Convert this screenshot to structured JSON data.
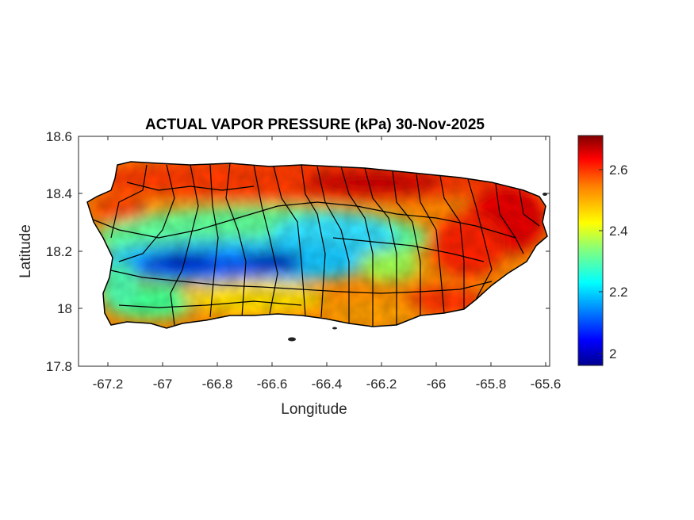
{
  "title": "ACTUAL VAPOR PRESSURE (kPa) 30-Nov-2025",
  "xlabel": "Longitude",
  "ylabel": "Latitude",
  "x_ticks": [
    "-67.2",
    "-67",
    "-66.8",
    "-66.6",
    "-66.4",
    "-66.2",
    "-66",
    "-65.8",
    "-65.6"
  ],
  "y_ticks": [
    "18.6",
    "18.4",
    "18.2",
    "18",
    "17.8"
  ],
  "colorbar": {
    "ticks": [
      "2.6",
      "2.4",
      "2.2",
      "2"
    ],
    "range": [
      1.96,
      2.71
    ],
    "colormap": "jet",
    "colors": [
      "#00008f",
      "#0000ff",
      "#00ffff",
      "#80ff80",
      "#ffff00",
      "#ff8000",
      "#ff0000",
      "#800000"
    ]
  },
  "map": {
    "region": "Puerto Rico",
    "lon_range": [
      -67.3,
      -65.58
    ],
    "lat_range": [
      17.8,
      18.6
    ],
    "variable_pattern": "high (red) along north and east coasts, low (blue) over central mountains near lon -66.9 to -66.5, lat 18.15"
  }
}
